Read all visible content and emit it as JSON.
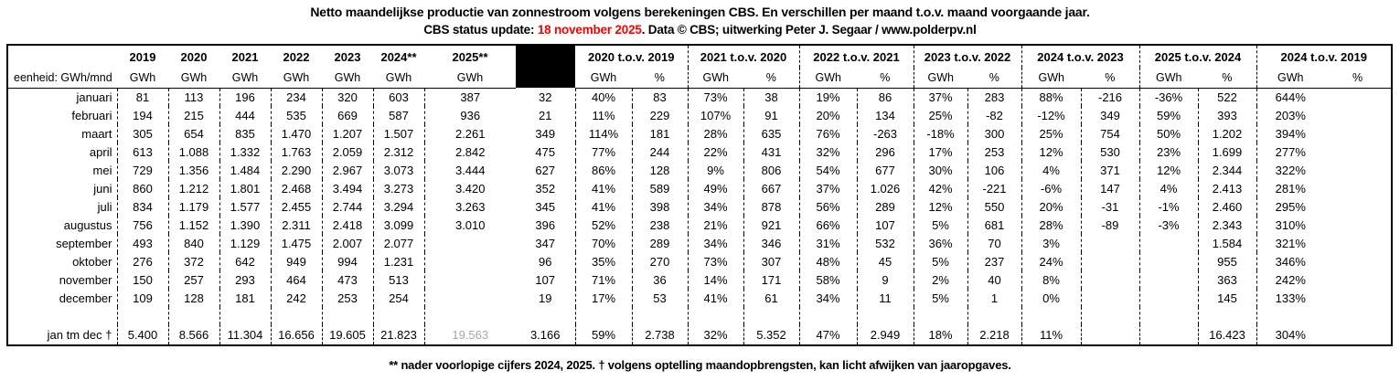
{
  "title": {
    "line1": "Netto maandelijkse productie van zonnestroom volgens berekeningen CBS. En verschillen per maand t.o.v. maand voorgaande jaar.",
    "line2_prefix": "CBS status update: ",
    "line2_date": "18 november 2025",
    "line2_suffix": ". Data © CBS; uitwerking Peter J. Segaar / www.polderpv.nl"
  },
  "colors": {
    "accent_red": "#ff0000",
    "muted_gray": "#a6a6a6",
    "separator_black": "#000000"
  },
  "footer": {
    "note": "** nader voorlopige cijfers 2024, 2025.  † volgens optelling maandopbrengsten, kan licht afwijken van jaaropgaves."
  },
  "chart_data": {
    "type": "table",
    "title": "Netto maandelijkse productie van zonnestroom volgens berekeningen CBS",
    "unit_label": "eenheid: GWh/mnd",
    "year_headers": [
      "2019",
      "2020",
      "2021",
      "2022",
      "2023",
      "2024**",
      "2025**"
    ],
    "year_subheader": "GWh",
    "diff_groups": [
      "2020 t.o.v. 2019",
      "2021 t.o.v. 2020",
      "2022 t.o.v. 2021",
      "2023 t.o.v. 2022",
      "2024 t.o.v. 2023",
      "2025 t.o.v. 2024",
      "2024 t.o.v. 2019"
    ],
    "diff_subheaders": [
      "GWh",
      "%"
    ],
    "rows": [
      {
        "month": "januari",
        "production": [
          "81",
          "113",
          "196",
          "234",
          "320",
          "603",
          "387"
        ],
        "diffs": [
          "32",
          "40%",
          "83",
          "73%",
          "38",
          "19%",
          "86",
          "37%",
          "283",
          "88%",
          "-216",
          "-36%",
          "522",
          "644%"
        ]
      },
      {
        "month": "februari",
        "production": [
          "194",
          "215",
          "444",
          "535",
          "669",
          "587",
          "936"
        ],
        "diffs": [
          "21",
          "11%",
          "229",
          "107%",
          "91",
          "20%",
          "134",
          "25%",
          "-82",
          "-12%",
          "349",
          "59%",
          "393",
          "203%"
        ]
      },
      {
        "month": "maart",
        "production": [
          "305",
          "654",
          "835",
          "1.470",
          "1.207",
          "1.507",
          "2.261"
        ],
        "diffs": [
          "349",
          "114%",
          "181",
          "28%",
          "635",
          "76%",
          "-263",
          "-18%",
          "300",
          "25%",
          "754",
          "50%",
          "1.202",
          "394%"
        ]
      },
      {
        "month": "april",
        "production": [
          "613",
          "1.088",
          "1.332",
          "1.763",
          "2.059",
          "2.312",
          "2.842"
        ],
        "diffs": [
          "475",
          "77%",
          "244",
          "22%",
          "431",
          "32%",
          "296",
          "17%",
          "253",
          "12%",
          "530",
          "23%",
          "1.699",
          "277%"
        ]
      },
      {
        "month": "mei",
        "production": [
          "729",
          "1.356",
          "1.484",
          "2.290",
          "2.967",
          "3.073",
          "3.444"
        ],
        "diffs": [
          "627",
          "86%",
          "128",
          "9%",
          "806",
          "54%",
          "677",
          "30%",
          "106",
          "4%",
          "371",
          "12%",
          "2.344",
          "322%"
        ]
      },
      {
        "month": "juni",
        "production": [
          "860",
          "1.212",
          "1.801",
          "2.468",
          "3.494",
          "3.273",
          "3.420"
        ],
        "diffs": [
          "352",
          "41%",
          "589",
          "49%",
          "667",
          "37%",
          "1.026",
          "42%",
          "-221",
          "-6%",
          "147",
          "4%",
          "2.413",
          "281%"
        ]
      },
      {
        "month": "juli",
        "production": [
          "834",
          "1.179",
          "1.577",
          "2.455",
          "2.744",
          "3.294",
          "3.263"
        ],
        "diffs": [
          "345",
          "41%",
          "398",
          "34%",
          "878",
          "56%",
          "289",
          "12%",
          "550",
          "20%",
          "-31",
          "-1%",
          "2.460",
          "295%"
        ]
      },
      {
        "month": "augustus",
        "production": [
          "756",
          "1.152",
          "1.390",
          "2.311",
          "2.418",
          "3.099",
          "3.010"
        ],
        "diffs": [
          "396",
          "52%",
          "238",
          "21%",
          "921",
          "66%",
          "107",
          "5%",
          "681",
          "28%",
          "-89",
          "-3%",
          "2.343",
          "310%"
        ]
      },
      {
        "month": "september",
        "production": [
          "493",
          "840",
          "1.129",
          "1.475",
          "2.007",
          "2.077",
          ""
        ],
        "diffs": [
          "347",
          "70%",
          "289",
          "34%",
          "346",
          "31%",
          "532",
          "36%",
          "70",
          "3%",
          "",
          "",
          "1.584",
          "321%"
        ]
      },
      {
        "month": "oktober",
        "production": [
          "276",
          "372",
          "642",
          "949",
          "994",
          "1.231",
          ""
        ],
        "diffs": [
          "96",
          "35%",
          "270",
          "73%",
          "307",
          "48%",
          "45",
          "5%",
          "237",
          "24%",
          "",
          "",
          "955",
          "346%"
        ]
      },
      {
        "month": "november",
        "production": [
          "150",
          "257",
          "293",
          "464",
          "473",
          "513",
          ""
        ],
        "diffs": [
          "107",
          "71%",
          "36",
          "14%",
          "171",
          "58%",
          "9",
          "2%",
          "40",
          "8%",
          "",
          "",
          "363",
          "242%"
        ]
      },
      {
        "month": "december",
        "production": [
          "109",
          "128",
          "181",
          "242",
          "253",
          "254",
          ""
        ],
        "diffs": [
          "19",
          "17%",
          "53",
          "41%",
          "61",
          "34%",
          "11",
          "5%",
          "1",
          "0%",
          "",
          "",
          "145",
          "133%"
        ]
      }
    ],
    "total_row": {
      "label": "jan tm dec †",
      "production": [
        "5.400",
        "8.566",
        "11.304",
        "16.656",
        "19.605",
        "21.823",
        "19.563"
      ],
      "diffs": [
        "3.166",
        "59%",
        "2.738",
        "32%",
        "5.352",
        "47%",
        "2.949",
        "18%",
        "2.218",
        "11%",
        "",
        "",
        "16.423",
        "304%"
      ]
    },
    "muted_total_index": 6,
    "markers": [
      {
        "row": 2,
        "col": 6
      },
      {
        "row": 1,
        "col": 8
      },
      {
        "row": 5,
        "col": 8
      },
      {
        "row": 1,
        "col": 10
      },
      {
        "row": 5,
        "col": 10
      }
    ]
  }
}
